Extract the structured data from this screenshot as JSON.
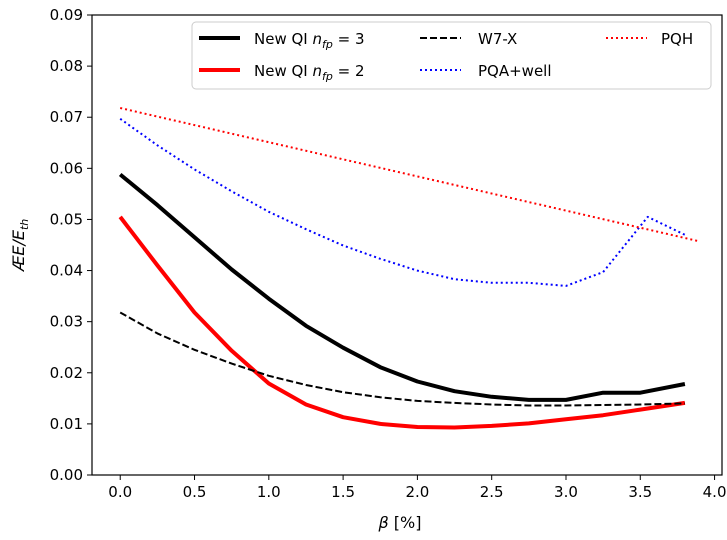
{
  "chart_data": {
    "type": "line",
    "title": "",
    "xlabel": "β [%]",
    "ylabel": "ÆE/E_th",
    "xlim": [
      -0.19,
      4.05
    ],
    "ylim": [
      0.0,
      0.09
    ],
    "xticks": [
      "0.0",
      "0.5",
      "1.0",
      "1.5",
      "2.0",
      "2.5",
      "3.0",
      "3.5",
      "4.0"
    ],
    "yticks": [
      "0.00",
      "0.01",
      "0.02",
      "0.03",
      "0.04",
      "0.05",
      "0.06",
      "0.07",
      "0.08",
      "0.09"
    ],
    "grid": false,
    "legend_placement": "top-right",
    "series": [
      {
        "name": "New QI n_fp = 3",
        "color": "#000000",
        "style": "solid-thick",
        "x": [
          0.0,
          0.25,
          0.5,
          0.75,
          1.0,
          1.25,
          1.5,
          1.75,
          2.0,
          2.25,
          2.5,
          2.75,
          3.0,
          3.25,
          3.5,
          3.8
        ],
        "y": [
          0.0588,
          0.0528,
          0.0465,
          0.0402,
          0.0345,
          0.0292,
          0.0249,
          0.0211,
          0.0183,
          0.0164,
          0.0153,
          0.0147,
          0.0147,
          0.0161,
          0.0161,
          0.0178
        ]
      },
      {
        "name": "New QI n_fp = 2",
        "color": "#ff0000",
        "style": "solid-thick",
        "x": [
          0.0,
          0.25,
          0.5,
          0.75,
          1.0,
          1.25,
          1.5,
          1.75,
          2.0,
          2.25,
          2.5,
          2.75,
          3.0,
          3.25,
          3.5,
          3.8
        ],
        "y": [
          0.0505,
          0.041,
          0.0318,
          0.0243,
          0.0179,
          0.0138,
          0.0113,
          0.01,
          0.0094,
          0.0093,
          0.0096,
          0.0101,
          0.0109,
          0.0117,
          0.0128,
          0.0141
        ]
      },
      {
        "name": "W7-X",
        "color": "#000000",
        "style": "dashed",
        "x": [
          0.0,
          0.25,
          0.5,
          0.75,
          1.0,
          1.25,
          1.5,
          1.75,
          2.0,
          2.25,
          2.5,
          2.75,
          3.0,
          3.25,
          3.5,
          3.8
        ],
        "y": [
          0.0318,
          0.0277,
          0.0245,
          0.0218,
          0.0194,
          0.0176,
          0.0162,
          0.0152,
          0.0145,
          0.0141,
          0.0138,
          0.0136,
          0.0136,
          0.0137,
          0.0138,
          0.014
        ]
      },
      {
        "name": "PQA+well",
        "color": "#0000ff",
        "style": "dotted",
        "x": [
          0.0,
          0.25,
          0.5,
          0.75,
          1.0,
          1.25,
          1.5,
          1.75,
          2.0,
          2.25,
          2.5,
          2.75,
          3.0,
          3.25,
          3.55,
          3.8
        ],
        "y": [
          0.0697,
          0.0645,
          0.0598,
          0.0555,
          0.0515,
          0.0481,
          0.0449,
          0.0423,
          0.04,
          0.0383,
          0.0376,
          0.0376,
          0.037,
          0.0397,
          0.0505,
          0.047
        ]
      },
      {
        "name": "PQH",
        "color": "#ff0000",
        "style": "dotted",
        "x": [
          0.0,
          3.9
        ],
        "y": [
          0.0718,
          0.0457
        ]
      }
    ]
  }
}
